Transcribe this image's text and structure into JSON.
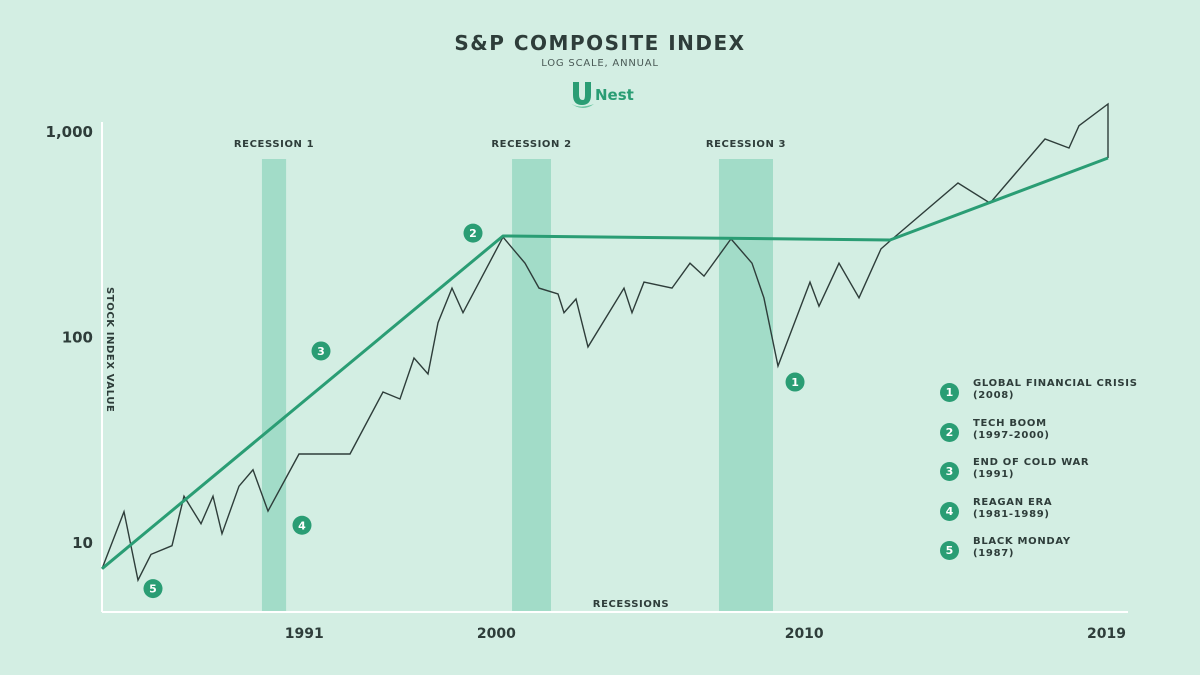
{
  "header": {
    "title": "S&P COMPOSITE INDEX",
    "subtitle": "LOG SCALE, ANNUAL",
    "logo_text": "Nest",
    "logo_icon": "unest-u-leaf-icon"
  },
  "colors": {
    "background": "#d3eee3",
    "trend": "#2a9d74",
    "index_line": "#2e3d3a",
    "recession_band": "#a2dcc8",
    "badge": "#2a9d74",
    "axis": "#ffffff"
  },
  "chart_data": {
    "type": "line",
    "title": "S&P COMPOSITE INDEX",
    "subtitle": "LOG SCALE, ANNUAL",
    "xlabel": "RECESSIONS",
    "ylabel": "STOCK INDEX VALUE",
    "yscale": "log",
    "ylim": [
      5.1,
      1500
    ],
    "xlim": [
      0,
      1
    ],
    "x_note": "x is a time index from the first to the last observation (0 = first year, 1 = 2019)",
    "y_ticks": [
      {
        "value": 10,
        "label": "10"
      },
      {
        "value": 100,
        "label": "100"
      },
      {
        "value": 1000,
        "label": "1,000"
      }
    ],
    "x_ticks": [
      {
        "t": 0.201,
        "label": "1991"
      },
      {
        "t": 0.392,
        "label": "2000"
      },
      {
        "t": 0.698,
        "label": "2010"
      },
      {
        "t": 1.0,
        "label": "2019"
      }
    ],
    "grid": false,
    "series": [
      {
        "name": "S&P Composite Index",
        "style": "thin-dark",
        "points": [
          [
            0.0,
            7.5
          ],
          [
            0.0219,
            14.2
          ],
          [
            0.0358,
            6.6
          ],
          [
            0.0487,
            8.8
          ],
          [
            0.0696,
            9.7
          ],
          [
            0.0815,
            16.9
          ],
          [
            0.0984,
            12.4
          ],
          [
            0.1103,
            16.9
          ],
          [
            0.1193,
            11.1
          ],
          [
            0.1362,
            18.9
          ],
          [
            0.1501,
            22.7
          ],
          [
            0.165,
            14.3
          ],
          [
            0.1958,
            27.1
          ],
          [
            0.2465,
            27.1
          ],
          [
            0.2793,
            54.3
          ],
          [
            0.2962,
            50.2
          ],
          [
            0.3101,
            79.5
          ],
          [
            0.3241,
            66.4
          ],
          [
            0.334,
            118
          ],
          [
            0.3479,
            174
          ],
          [
            0.3588,
            132
          ],
          [
            0.3986,
            308
          ],
          [
            0.4205,
            230
          ],
          [
            0.4344,
            174
          ],
          [
            0.4533,
            163
          ],
          [
            0.4592,
            132
          ],
          [
            0.4712,
            154
          ],
          [
            0.4831,
            90
          ],
          [
            0.5189,
            174
          ],
          [
            0.5268,
            132
          ],
          [
            0.5388,
            186
          ],
          [
            0.5666,
            174
          ],
          [
            0.5845,
            230
          ],
          [
            0.5984,
            199
          ],
          [
            0.6252,
            302
          ],
          [
            0.6461,
            230
          ],
          [
            0.658,
            156
          ],
          [
            0.672,
            72.7
          ],
          [
            0.7038,
            186
          ],
          [
            0.7127,
            142
          ],
          [
            0.7326,
            230
          ],
          [
            0.7525,
            156
          ],
          [
            0.7744,
            270
          ],
          [
            0.7833,
            295
          ],
          [
            0.8509,
            565
          ],
          [
            0.8827,
            451
          ],
          [
            0.9374,
            925
          ],
          [
            0.9612,
            836
          ],
          [
            0.9712,
            1073
          ],
          [
            1.0,
            1369
          ],
          [
            1.0,
            747
          ]
        ]
      },
      {
        "name": "Trend",
        "style": "thick-green",
        "points": [
          [
            0.0,
            7.5
          ],
          [
            0.3986,
            312
          ],
          [
            0.7833,
            298
          ],
          [
            1.0,
            747
          ]
        ]
      }
    ],
    "recessions": [
      {
        "label": "RECESSION 1",
        "t_start": 0.159,
        "t_end": 0.183
      },
      {
        "label": "RECESSION 2",
        "t_start": 0.4076,
        "t_end": 0.4463
      },
      {
        "label": "RECESSION 3",
        "t_start": 0.6133,
        "t_end": 0.667
      }
    ],
    "annotations": [
      {
        "number": "1",
        "t": 0.6889,
        "value": 60.7
      },
      {
        "number": "2",
        "t": 0.3688,
        "value": 322
      },
      {
        "number": "3",
        "t": 0.2177,
        "value": 86
      },
      {
        "number": "4",
        "t": 0.1988,
        "value": 12.2
      },
      {
        "number": "5",
        "t": 0.0507,
        "value": 6.0
      }
    ],
    "legend_position": "right",
    "legend": [
      {
        "number": "1",
        "label": "GLOBAL FINANCIAL CRISIS",
        "sub": "(2008)"
      },
      {
        "number": "2",
        "label": "TECH BOOM",
        "sub": "(1997-2000)"
      },
      {
        "number": "3",
        "label": "END OF COLD WAR",
        "sub": "(1991)"
      },
      {
        "number": "4",
        "label": "REAGAN ERA",
        "sub": "(1981-1989)"
      },
      {
        "number": "5",
        "label": "BLACK MONDAY",
        "sub": "(1987)"
      }
    ]
  }
}
